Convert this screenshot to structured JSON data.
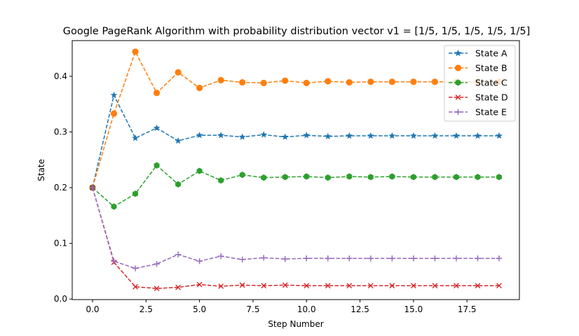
{
  "chart_data": {
    "type": "line",
    "title": "Google PageRank Algorithm with probability distribution vector v1 = [1/5, 1/5, 1/5, 1/5, 1/5]",
    "xlabel": "Step Number",
    "ylabel": "State",
    "xlim": [
      -0.95,
      19.95
    ],
    "ylim": [
      -0.001,
      0.464
    ],
    "xticks": [
      0.0,
      2.5,
      5.0,
      7.5,
      10.0,
      12.5,
      15.0,
      17.5
    ],
    "xtick_labels": [
      "0.0",
      "2.5",
      "5.0",
      "7.5",
      "10.0",
      "12.5",
      "15.0",
      "17.5"
    ],
    "yticks": [
      0.0,
      0.1,
      0.2,
      0.3,
      0.4
    ],
    "ytick_labels": [
      "0.0",
      "0.1",
      "0.2",
      "0.3",
      "0.4"
    ],
    "grid": false,
    "legend_position": "top-right",
    "x": [
      0,
      1,
      2,
      3,
      4,
      5,
      6,
      7,
      8,
      9,
      10,
      11,
      12,
      13,
      14,
      15,
      16,
      17,
      18,
      19
    ],
    "series": [
      {
        "name": "State A",
        "color": "#1f77b4",
        "marker": "star",
        "values": [
          0.2,
          0.366,
          0.289,
          0.307,
          0.284,
          0.294,
          0.294,
          0.291,
          0.295,
          0.291,
          0.294,
          0.292,
          0.293,
          0.293,
          0.293,
          0.293,
          0.293,
          0.293,
          0.293,
          0.293
        ]
      },
      {
        "name": "State B",
        "color": "#ff7f0e",
        "marker": "circle",
        "values": [
          0.2,
          0.333,
          0.444,
          0.37,
          0.407,
          0.379,
          0.393,
          0.389,
          0.388,
          0.392,
          0.388,
          0.391,
          0.389,
          0.39,
          0.39,
          0.39,
          0.39,
          0.39,
          0.39,
          0.39
        ]
      },
      {
        "name": "State C",
        "color": "#2ca02c",
        "marker": "hexagon",
        "values": [
          0.2,
          0.166,
          0.189,
          0.24,
          0.206,
          0.23,
          0.213,
          0.223,
          0.218,
          0.219,
          0.22,
          0.218,
          0.22,
          0.219,
          0.22,
          0.219,
          0.219,
          0.219,
          0.219,
          0.219
        ]
      },
      {
        "name": "State D",
        "color": "#d62728",
        "marker": "x",
        "values": [
          0.2,
          0.066,
          0.022,
          0.019,
          0.021,
          0.026,
          0.023,
          0.025,
          0.024,
          0.025,
          0.024,
          0.024,
          0.024,
          0.024,
          0.024,
          0.024,
          0.024,
          0.024,
          0.024,
          0.024
        ]
      },
      {
        "name": "State E",
        "color": "#9467bd",
        "marker": "plus",
        "values": [
          0.2,
          0.068,
          0.055,
          0.063,
          0.08,
          0.068,
          0.077,
          0.071,
          0.074,
          0.072,
          0.073,
          0.073,
          0.073,
          0.073,
          0.073,
          0.073,
          0.073,
          0.073,
          0.073,
          0.073
        ]
      }
    ]
  }
}
